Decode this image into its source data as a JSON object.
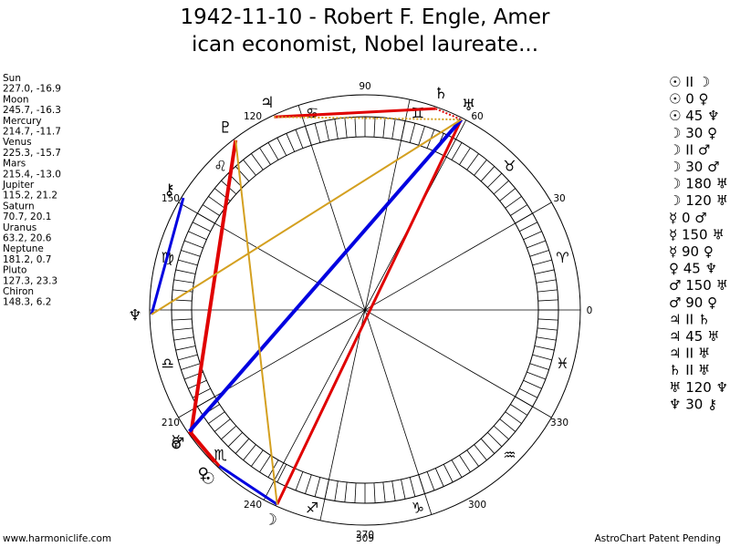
{
  "header": {
    "title_line1": "1942-11-10 - Robert F. Engle, Amer",
    "title_line2": "ican economist, Nobel laureate..."
  },
  "planets": [
    {
      "name": "Sun",
      "coords": "227.0, -16.9",
      "glyph": "☉"
    },
    {
      "name": "Moon",
      "coords": "245.7, -16.3",
      "glyph": "☽"
    },
    {
      "name": "Mercury",
      "coords": "214.7, -11.7",
      "glyph": "☿"
    },
    {
      "name": "Venus",
      "coords": "225.3, -15.7",
      "glyph": "♀"
    },
    {
      "name": "Mars",
      "coords": "215.4, -13.0",
      "glyph": "♂"
    },
    {
      "name": "Jupiter",
      "coords": "115.2, 21.2",
      "glyph": "♃"
    },
    {
      "name": "Saturn",
      "coords": "70.7, 20.1",
      "glyph": "♄"
    },
    {
      "name": "Uranus",
      "coords": "63.2, 20.6",
      "glyph": "♅"
    },
    {
      "name": "Neptune",
      "coords": "181.2, 0.7",
      "glyph": "♆"
    },
    {
      "name": "Pluto",
      "coords": "127.3, 23.3",
      "glyph": "♇"
    },
    {
      "name": "Chiron",
      "coords": "148.3, 6.2",
      "glyph": "⚷"
    }
  ],
  "degree_labels": [
    0,
    30,
    60,
    90,
    120,
    150,
    210,
    240,
    270,
    300,
    330
  ],
  "signs": [
    "♈",
    "♉",
    "♊",
    "♋",
    "♌",
    "♍",
    "♎",
    "♏",
    "♐",
    "♑",
    "♒",
    "♓"
  ],
  "aspects": [
    "☉ II ☽",
    "☉ 0 ♀",
    "☉ 45 ♆",
    "☽ 30 ♀",
    "☽ II ♂",
    "☽ 30 ♂",
    "☽ 180 ♅",
    "☽ 120 ♅",
    "☿ 0 ♂",
    "☿ 150 ♅",
    "☿ 90 ♀",
    "♀ 45 ♆",
    "♂ 150 ♅",
    "♂ 90 ♀",
    "♃ II ♄",
    "♃ 45 ♅",
    "♃ II ♅",
    "♄ II ♅",
    "♅ 120 ♆",
    "♆ 30 ⚷"
  ],
  "footer": {
    "left": "www.harmoniclife.com",
    "center": "309",
    "right": "AstroChart Patent Pending"
  }
}
